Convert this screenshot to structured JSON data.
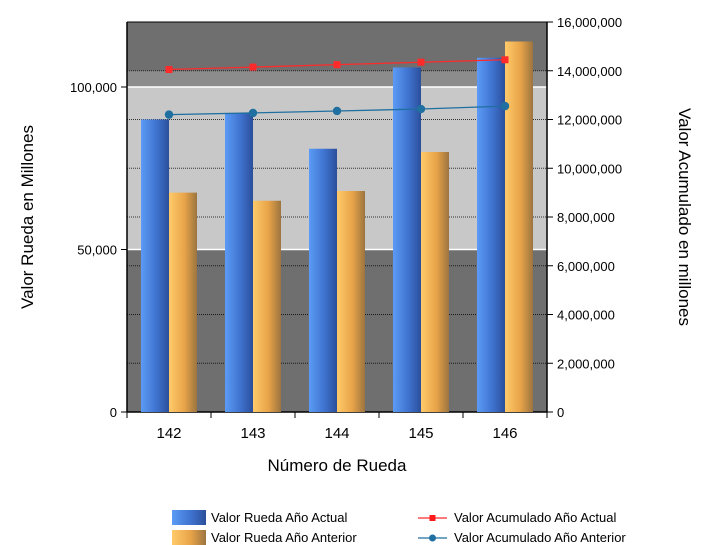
{
  "chart_data": {
    "type": "bar",
    "title": "",
    "xlabel": "Número de Rueda",
    "ylabel": "Valor Rueda en Millones",
    "y2label": "Valor Acumulado en millones",
    "categories": [
      "142",
      "143",
      "144",
      "145",
      "146"
    ],
    "ylim": [
      0,
      120000
    ],
    "y2lim": [
      0,
      16000000
    ],
    "yticks": [
      "0",
      "50,000",
      "100,000"
    ],
    "y2ticks": [
      "0",
      "2,000,000",
      "4,000,000",
      "6,000,000",
      "8,000,000",
      "10,000,000",
      "12,000,000",
      "14,000,000",
      "16,000,000"
    ],
    "grid": true,
    "legend_position": "bottom",
    "series": [
      {
        "name": "Valor Rueda Año Actual",
        "kind": "bar",
        "axis": "left",
        "color": "#4f86e0",
        "values": [
          90000,
          92000,
          81000,
          106000,
          109000
        ]
      },
      {
        "name": "Valor Rueda Año Anterior",
        "kind": "bar",
        "axis": "left",
        "color": "#f5b24a",
        "values": [
          67500,
          65000,
          68000,
          80000,
          114000
        ]
      },
      {
        "name": "Valor Acumulado Año Actual",
        "kind": "line",
        "axis": "right",
        "color": "#ff2a2a",
        "values": [
          14050000,
          14150000,
          14250000,
          14350000,
          14450000
        ]
      },
      {
        "name": "Valor Acumulado Año Anterior",
        "kind": "line",
        "axis": "right",
        "color": "#1f6fa0",
        "values": [
          12200000,
          12270000,
          12350000,
          12430000,
          12550000
        ]
      }
    ]
  }
}
